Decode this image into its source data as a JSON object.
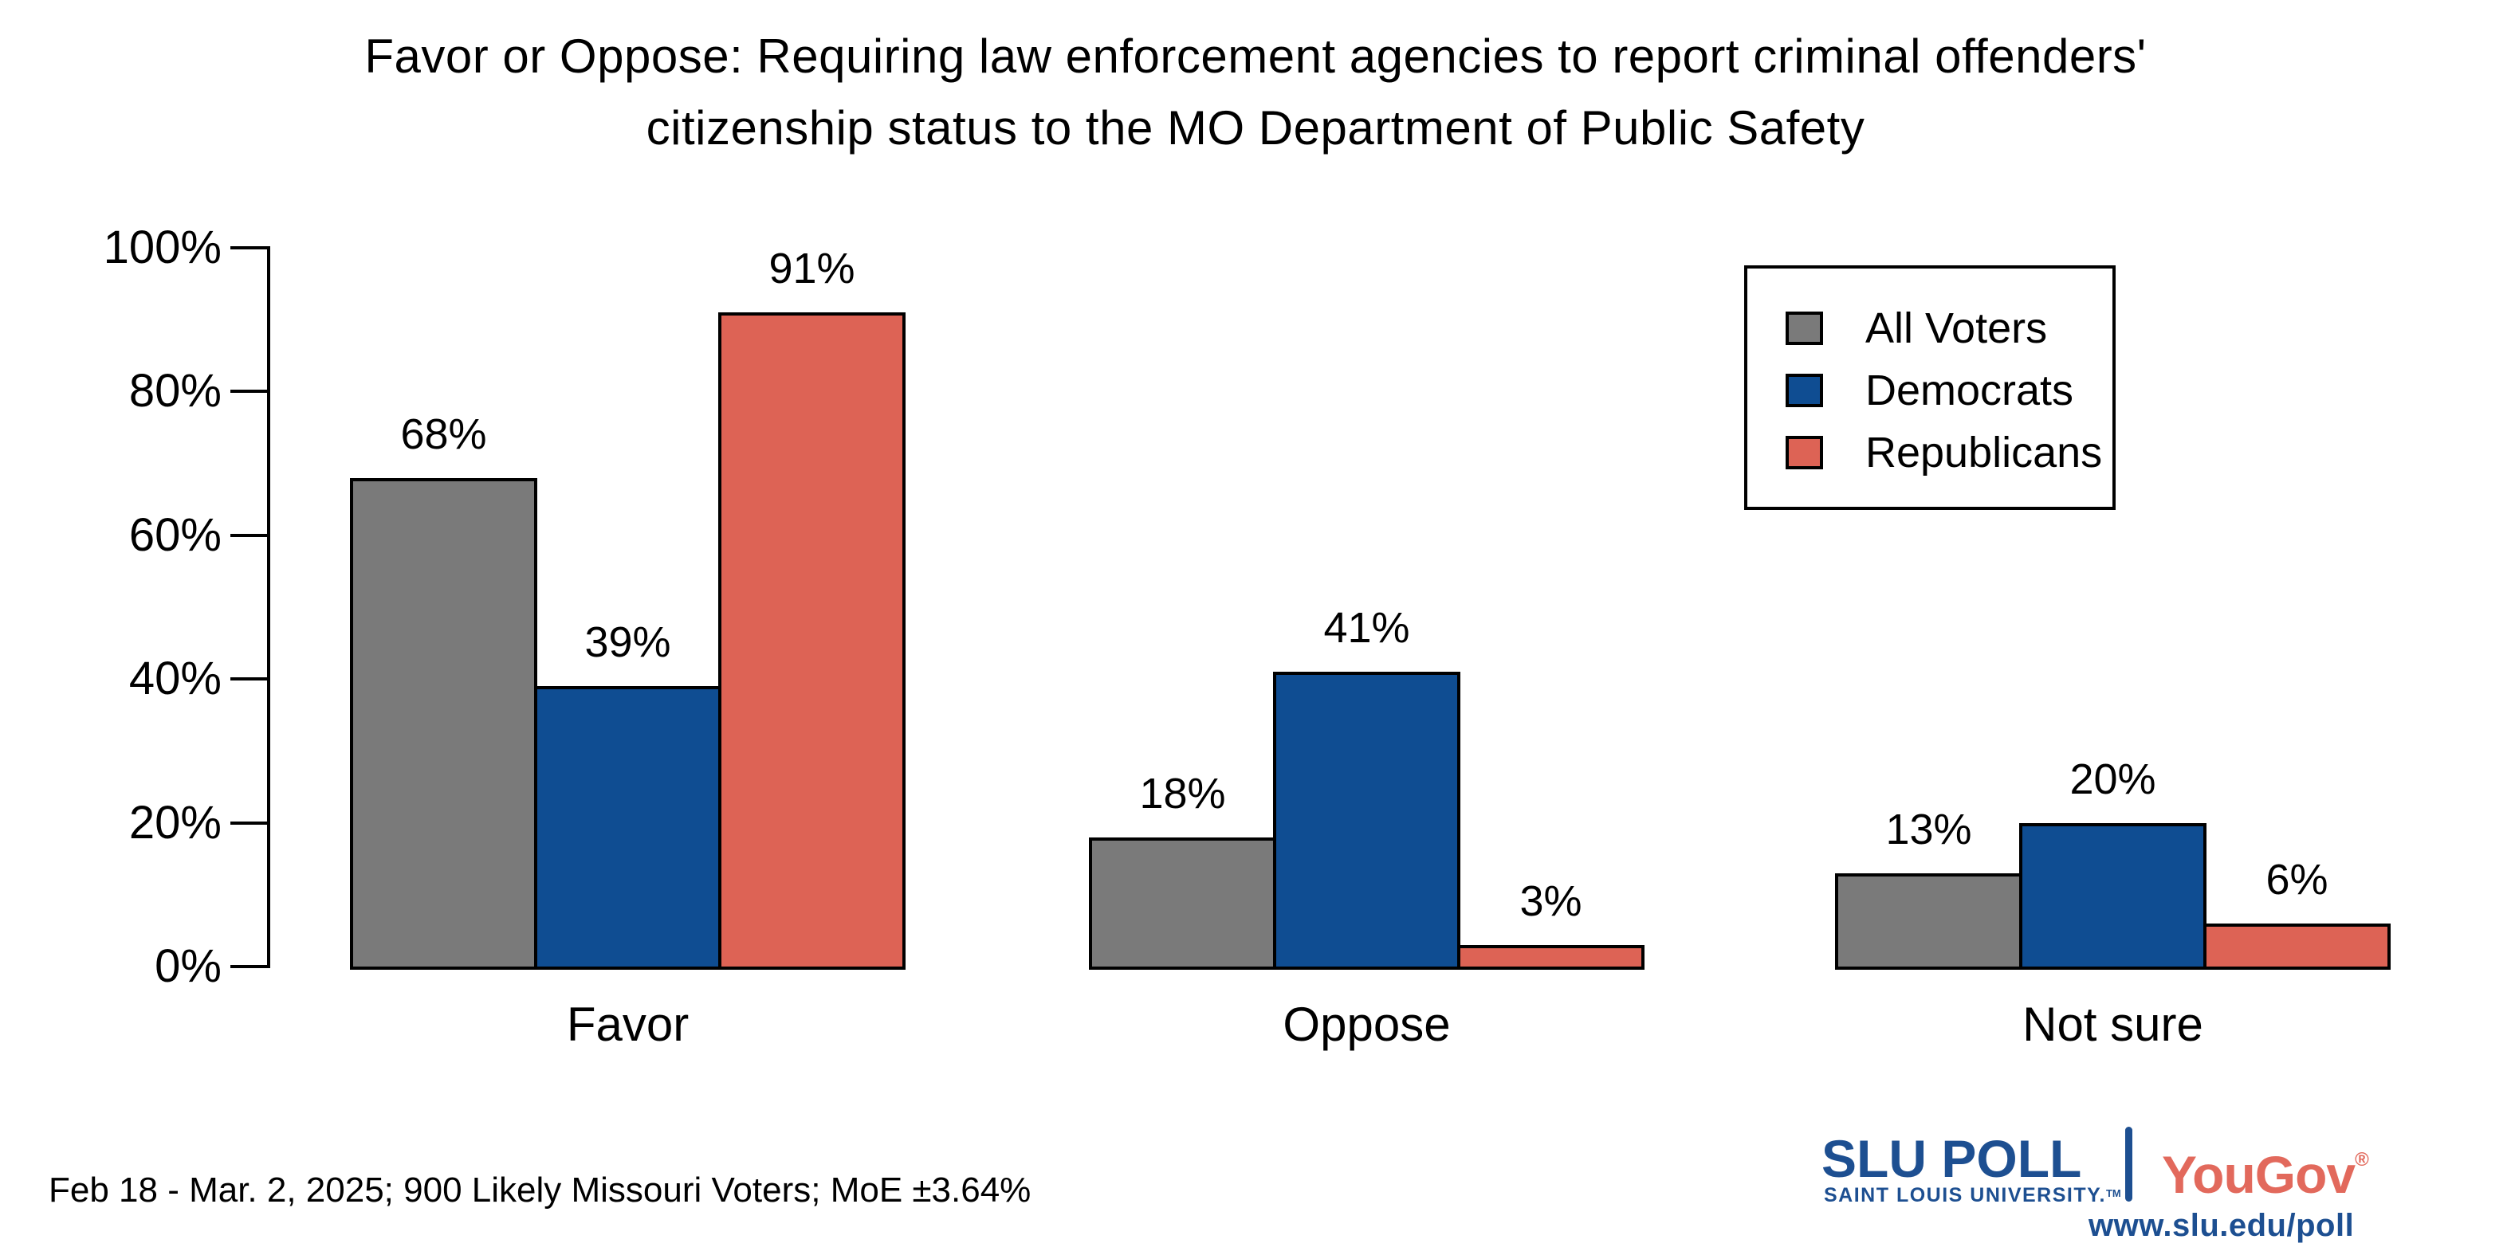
{
  "title": {
    "line1": "Favor or Oppose: Requiring law enforcement agencies to report criminal offenders'",
    "line2": "citizenship status to the MO Department of Public Safety"
  },
  "footnote": "Feb 18 - Mar. 2, 2025; 900 Likely Missouri Voters; MoE ±3.64%",
  "chart_data": {
    "type": "bar",
    "title": "Favor or Oppose: Requiring law enforcement agencies to report criminal offenders' citizenship status to the MO Department of Public Safety",
    "categories": [
      "Favor",
      "Oppose",
      "Not sure"
    ],
    "series": [
      {
        "name": "All Voters",
        "color": "#7a7a7a",
        "values": [
          68,
          18,
          13
        ]
      },
      {
        "name": "Democrats",
        "color": "#0f4d92",
        "values": [
          39,
          41,
          20
        ]
      },
      {
        "name": "Republicans",
        "color": "#dd6355",
        "values": [
          91,
          3,
          6
        ]
      }
    ],
    "bar_label_suffix": "%",
    "xlabel": "",
    "ylabel": "",
    "ylim": [
      0,
      100
    ],
    "yticks": [
      0,
      20,
      40,
      60,
      80,
      100
    ],
    "ytick_labels": [
      "0%",
      "20%",
      "40%",
      "60%",
      "80%",
      "100%"
    ],
    "grid": false,
    "bar_edge_color": "#000000",
    "legend": {
      "position": "upper right",
      "entries": [
        "All Voters",
        "Democrats",
        "Republicans"
      ]
    }
  },
  "branding": {
    "slu_title": "SLU POLL",
    "slu_subtitle": "SAINT LOUIS UNIVERSITY.",
    "slu_trademark": "TM",
    "yougov": "YouGov",
    "yougov_registered": "®",
    "url": "www.slu.edu/poll",
    "slu_blue": "#1d4f91",
    "yougov_red": "#e2695c"
  }
}
